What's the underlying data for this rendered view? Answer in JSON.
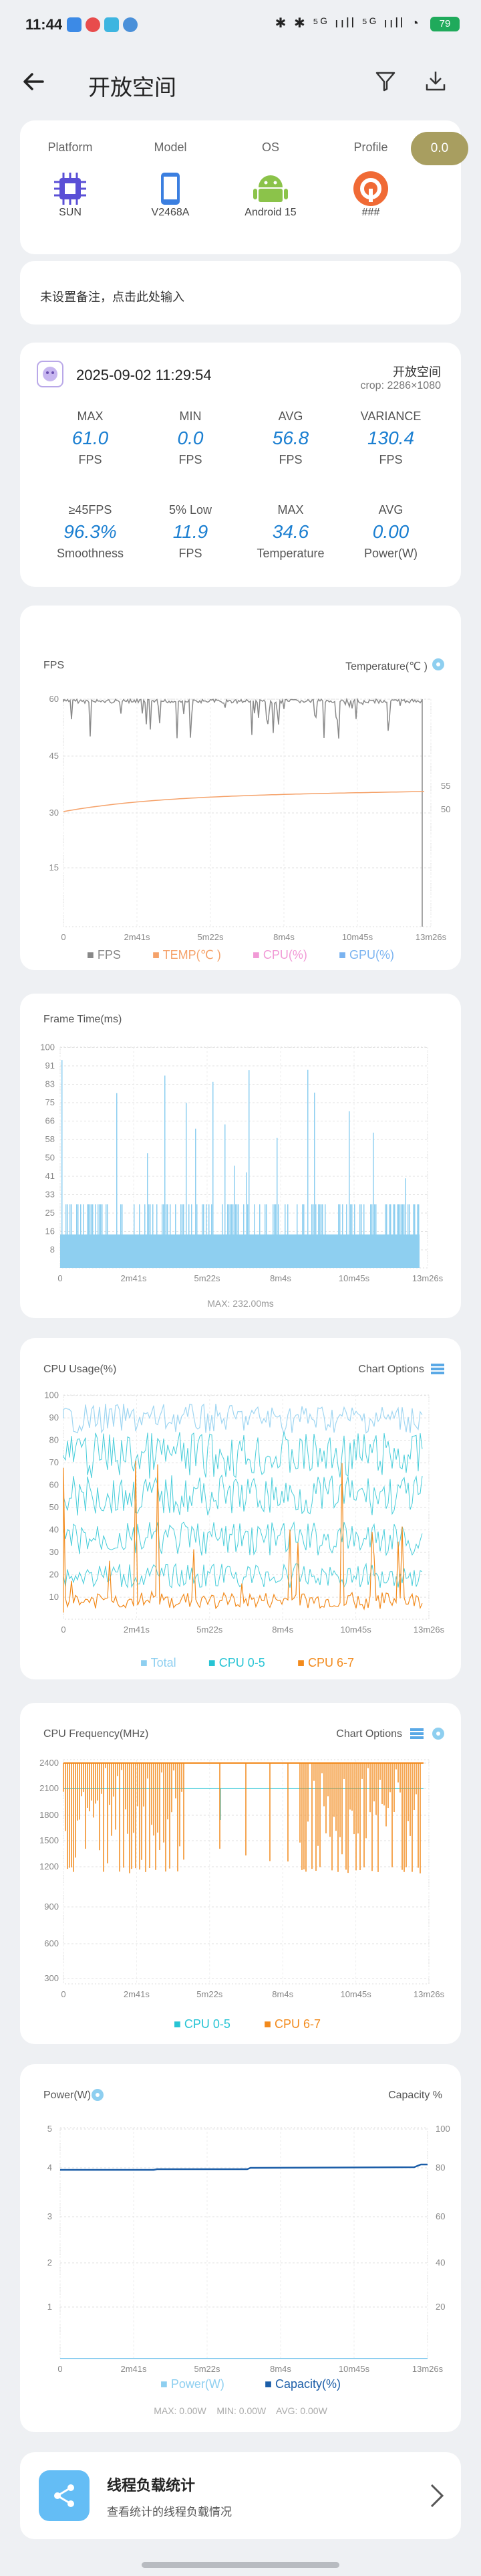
{
  "status_bar": {
    "time": "11:44",
    "icons_right": "✱ ✱ ⁵ᴳ ııll ⁵ᴳ ııll ◔",
    "battery": "79"
  },
  "header": {
    "title": "开放空间",
    "back_icon": "back-arrow-icon",
    "filter_icon": "filter-icon",
    "download_icon": "download-icon"
  },
  "device": {
    "columns": [
      {
        "label": "Platform",
        "value": "SUN",
        "icon": "chip-icon",
        "color": "#5a4fd6"
      },
      {
        "label": "Model",
        "value": "V2468A",
        "icon": "phone-icon",
        "color": "#3b7fe0"
      },
      {
        "label": "OS",
        "value": "Android 15",
        "icon": "android-icon",
        "color": "#8bc34a"
      },
      {
        "label": "Profile",
        "value": "###",
        "icon": "profile-icon",
        "color": "#f06a35"
      }
    ],
    "badge": "0.0"
  },
  "remark": "未设置备注，点击此处输入",
  "session": {
    "datetime": "2025-09-02 11:29:54",
    "app_name": "开放空间",
    "crop": "crop: 2286×1080",
    "stats_row1": [
      {
        "header": "MAX",
        "value": "61.0",
        "unit": "FPS"
      },
      {
        "header": "MIN",
        "value": "0.0",
        "unit": "FPS"
      },
      {
        "header": "AVG",
        "value": "56.8",
        "unit": "FPS"
      },
      {
        "header": "VARIANCE",
        "value": "130.4",
        "unit": "FPS"
      }
    ],
    "stats_row2": [
      {
        "header": "≥45FPS",
        "value": "96.3%",
        "unit": "Smoothness"
      },
      {
        "header": "5% Low",
        "value": "11.9",
        "unit": "FPS"
      },
      {
        "header": "MAX",
        "value": "34.6",
        "unit": "Temperature"
      },
      {
        "header": "AVG",
        "value": "0.00",
        "unit": "Power(W)"
      }
    ]
  },
  "x_ticks": [
    "0",
    "2m41s",
    "5m22s",
    "8m4s",
    "10m45s",
    "13m26s"
  ],
  "fps_chart": {
    "title": "FPS",
    "right_title": "Temperature(℃ )",
    "y_ticks": [
      "60",
      "45",
      "30",
      "15"
    ],
    "right_ticks": [
      "55",
      "50"
    ],
    "legend": [
      "FPS",
      "TEMP(℃ )",
      "CPU(%)",
      "GPU(%)"
    ],
    "legend_colors": [
      "#888888",
      "#f5a26a",
      "#f19ad6",
      "#7ab3f0"
    ]
  },
  "frametime_chart": {
    "title": "Frame Time(ms)",
    "y_ticks": [
      "100",
      "91",
      "83",
      "75",
      "66",
      "58",
      "50",
      "41",
      "33",
      "25",
      "16",
      "8"
    ],
    "footer": "MAX: 232.00ms"
  },
  "cpu_usage_chart": {
    "title": "CPU Usage(%)",
    "right_title": "Chart Options",
    "y_ticks": [
      "100",
      "90",
      "80",
      "70",
      "60",
      "50",
      "40",
      "30",
      "20",
      "10"
    ],
    "legend": [
      "Total",
      "CPU 0-5",
      "CPU 6-7"
    ],
    "legend_colors": [
      "#8ecff0",
      "#27c4d4",
      "#f28a1c"
    ]
  },
  "cpu_freq_chart": {
    "title": "CPU Frequency(MHz)",
    "right_title": "Chart Options",
    "y_ticks": [
      "2400",
      "2100",
      "1800",
      "1500",
      "1200",
      "900",
      "600",
      "300"
    ],
    "legend": [
      "CPU 0-5",
      "CPU 6-7"
    ],
    "legend_colors": [
      "#27c4d4",
      "#f28a1c"
    ]
  },
  "power_chart": {
    "title": "Power(W)",
    "right_title": "Capacity %",
    "y_ticks": [
      "5",
      "4",
      "3",
      "2",
      "1"
    ],
    "right_ticks": [
      "100",
      "80",
      "60",
      "40",
      "20"
    ],
    "legend": [
      "Power(W)",
      "Capacity(%)"
    ],
    "legend_colors": [
      "#8ecff0",
      "#1c5ea8"
    ],
    "footer": "MAX: 0.00W    MIN: 0.00W    AVG: 0.00W"
  },
  "thread_load": {
    "title": "线程负载统计",
    "subtitle": "查看统计的线程负载情况"
  }
}
